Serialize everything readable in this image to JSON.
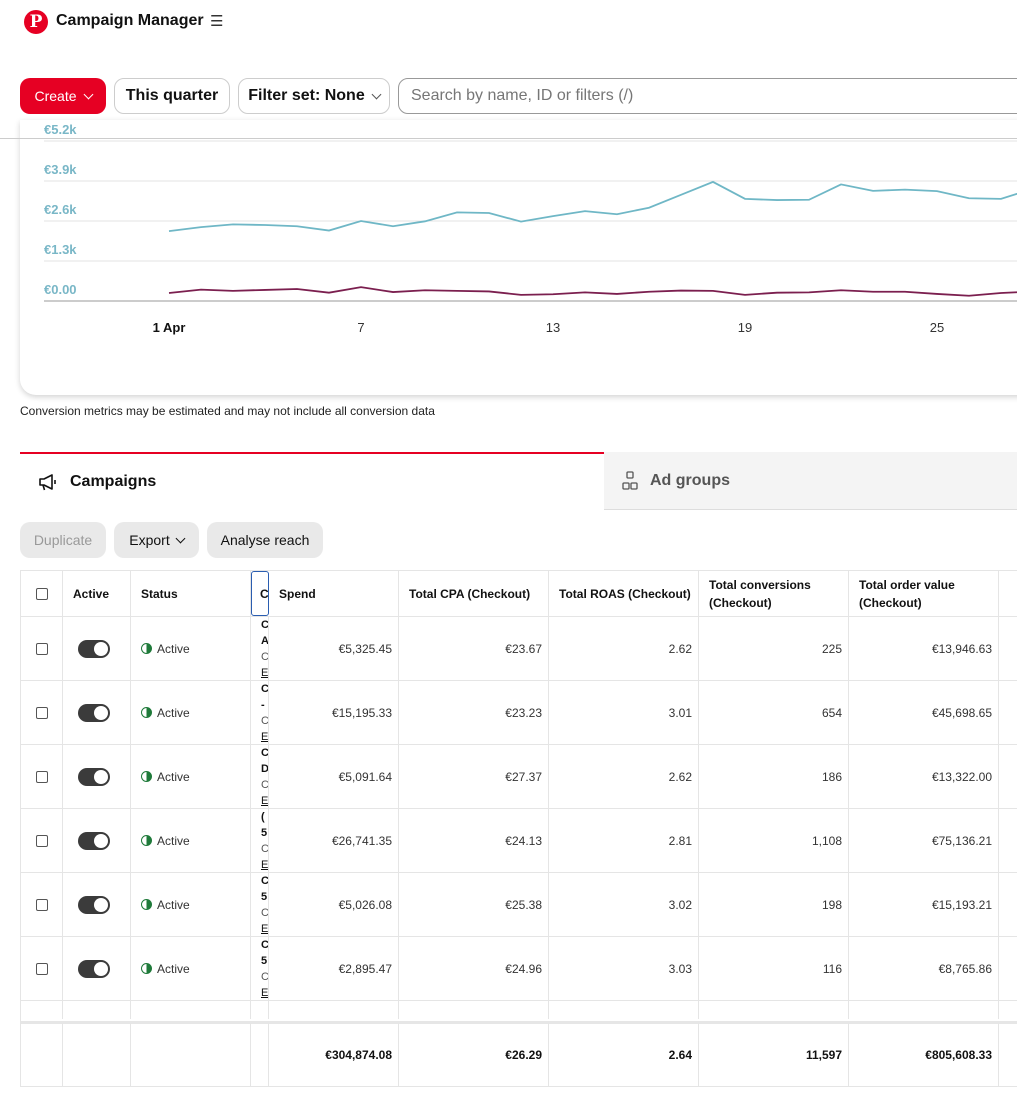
{
  "header": {
    "logo_letter": "P",
    "title": "Campaign Manager",
    "menu_icon": "hamburger-icon"
  },
  "toolbar": {
    "create_label": "Create",
    "date_label": "This quarter",
    "filter_label": "Filter set: None",
    "search_placeholder": "Search by name, ID or filters (/)"
  },
  "chart_data": {
    "type": "line",
    "y_ticks": [
      "€5.2k",
      "€3.9k",
      "€2.6k",
      "€1.3k",
      "€0.00"
    ],
    "ylim": [
      0,
      5200
    ],
    "x_ticks": [
      {
        "label": "1 Apr",
        "day": 1,
        "bold": true
      },
      {
        "label": "7",
        "day": 7,
        "bold": false
      },
      {
        "label": "13",
        "day": 13,
        "bold": false
      },
      {
        "label": "19",
        "day": 19,
        "bold": false
      },
      {
        "label": "25",
        "day": 25,
        "bold": false
      }
    ],
    "x": [
      1,
      2,
      3,
      4,
      5,
      6,
      7,
      8,
      9,
      10,
      11,
      12,
      13,
      14,
      15,
      16,
      17,
      18,
      19,
      20,
      21,
      22,
      23,
      24,
      25,
      26,
      27,
      28
    ],
    "series": [
      {
        "color": "#6fb7c6",
        "values": [
          2270,
          2400,
          2490,
          2470,
          2430,
          2290,
          2600,
          2430,
          2590,
          2880,
          2860,
          2580,
          2760,
          2920,
          2820,
          3030,
          3450,
          3870,
          3320,
          3280,
          3290,
          3790,
          3580,
          3620,
          3570,
          3340,
          3320,
          3650
        ]
      },
      {
        "color": "#7b1f4f",
        "values": [
          260,
          370,
          330,
          360,
          390,
          270,
          450,
          290,
          350,
          330,
          310,
          200,
          220,
          280,
          230,
          300,
          340,
          330,
          200,
          270,
          280,
          350,
          300,
          300,
          230,
          170,
          260,
          310
        ]
      }
    ]
  },
  "disclaimer": "Conversion metrics may be estimated and may not include all conversion data",
  "tabs": {
    "campaigns": "Campaigns",
    "ad_groups": "Ad groups",
    "campaigns_icon": "megaphone-icon",
    "ad_groups_icon": "ad-groups-icon"
  },
  "actions": {
    "duplicate": "Duplicate",
    "export": "Export",
    "reach": "Analyse reach"
  },
  "table": {
    "headers": {
      "active": "Active",
      "status": "Status",
      "name_fragment": "C",
      "spend": "Spend",
      "cpa": "Total CPA (Checkout)",
      "roas": "Total ROAS (Checkout)",
      "conversions": "Total conversions (Checkout)",
      "order_value": "Total order value (Checkout)"
    },
    "rows": [
      {
        "status": "Active",
        "name_frag": [
          "C",
          "A",
          "C",
          "E"
        ],
        "spend": "€5,325.45",
        "cpa": "€23.67",
        "roas": "2.62",
        "conversions": "225",
        "order_value": "€13,946.63"
      },
      {
        "status": "Active",
        "name_frag": [
          "C",
          "-",
          "C",
          "E"
        ],
        "spend": "€15,195.33",
        "cpa": "€23.23",
        "roas": "3.01",
        "conversions": "654",
        "order_value": "€45,698.65"
      },
      {
        "status": "Active",
        "name_frag": [
          "C",
          "D",
          "C",
          "E"
        ],
        "spend": "€5,091.64",
        "cpa": "€27.37",
        "roas": "2.62",
        "conversions": "186",
        "order_value": "€13,322.00"
      },
      {
        "status": "Active",
        "name_frag": [
          "(",
          "5",
          "C",
          "E"
        ],
        "spend": "€26,741.35",
        "cpa": "€24.13",
        "roas": "2.81",
        "conversions": "1,108",
        "order_value": "€75,136.21"
      },
      {
        "status": "Active",
        "name_frag": [
          "C",
          "5",
          "C",
          "E"
        ],
        "spend": "€5,026.08",
        "cpa": "€25.38",
        "roas": "3.02",
        "conversions": "198",
        "order_value": "€15,193.21"
      },
      {
        "status": "Active",
        "name_frag": [
          "C",
          "5",
          "C",
          "E"
        ],
        "spend": "€2,895.47",
        "cpa": "€24.96",
        "roas": "3.03",
        "conversions": "116",
        "order_value": "€8,765.86"
      }
    ],
    "totals": {
      "spend": "€304,874.08",
      "cpa": "€26.29",
      "roas": "2.64",
      "conversions": "11,597",
      "order_value": "€805,608.33"
    }
  }
}
